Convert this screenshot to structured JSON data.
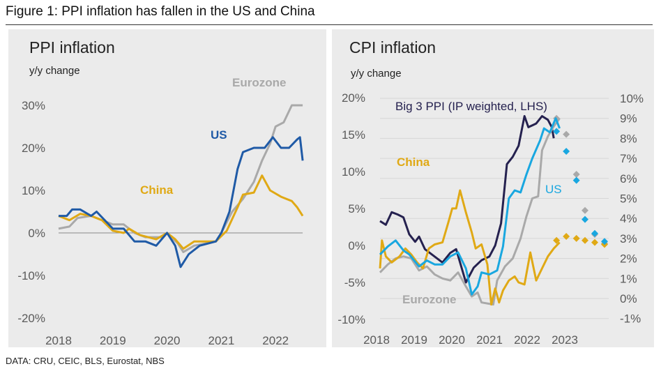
{
  "figure_title": "Figure 1: PPI inflation has fallen in the US and China",
  "footer": "DATA: CRU, CEIC, BLS, Eurostat, NBS",
  "colors": {
    "panel_bg": "#ebebeb",
    "us_ppi": "#1f5aa6",
    "china": "#e0a915",
    "eurozone": "#a9a9a9",
    "big3_ppi": "#25214f",
    "us_cpi": "#19a7e0"
  },
  "chart_data": [
    {
      "type": "line",
      "title": "PPI inflation",
      "ylabel": "y/y change",
      "ylim": [
        -20,
        30
      ],
      "xlim": [
        2018,
        2022.5
      ],
      "yticks": [
        "30%",
        "20%",
        "10%",
        "0%",
        "-10%",
        "-20%"
      ],
      "ytick_values": [
        30,
        20,
        10,
        0,
        -10,
        -20
      ],
      "xticks": [
        "2018",
        "2019",
        "2020",
        "2021",
        "2022"
      ],
      "grid": false,
      "zero_line": true,
      "series": [
        {
          "name": "Eurozone",
          "color": "#a9a9a9",
          "x": [
            2018,
            2018.2,
            2018.35,
            2018.6,
            2018.9,
            2019.0,
            2019.2,
            2019.4,
            2019.6,
            2019.9,
            2020.0,
            2020.2,
            2020.3,
            2020.5,
            2020.7,
            2020.9,
            2021.0,
            2021.2,
            2021.4,
            2021.6,
            2021.75,
            2021.9,
            2022.0,
            2022.15,
            2022.3,
            2022.5
          ],
          "y": [
            1,
            1.5,
            3.5,
            4,
            2.5,
            2,
            2,
            0,
            -1,
            -1,
            0,
            -2.5,
            -4.5,
            -3,
            -2.5,
            -2,
            0,
            5,
            8,
            12,
            17,
            21,
            25,
            26,
            30,
            30
          ]
        },
        {
          "name": "China",
          "color": "#e0a915",
          "x": [
            2018,
            2018.2,
            2018.4,
            2018.6,
            2018.8,
            2019.0,
            2019.2,
            2019.3,
            2019.5,
            2019.8,
            2020.0,
            2020.15,
            2020.3,
            2020.5,
            2020.7,
            2020.9,
            2021.1,
            2021.3,
            2021.4,
            2021.6,
            2021.75,
            2021.9,
            2022.1,
            2022.3,
            2022.4,
            2022.5
          ],
          "y": [
            4,
            3,
            4.5,
            4,
            3,
            0.5,
            0,
            1,
            -0.5,
            -1.5,
            0,
            -1.5,
            -3.7,
            -2,
            -2,
            -2,
            0.5,
            6,
            9,
            9.5,
            13.5,
            10,
            8.5,
            7.5,
            6,
            4
          ]
        },
        {
          "name": "US",
          "color": "#1f5aa6",
          "x": [
            2018,
            2018.15,
            2018.25,
            2018.4,
            2018.6,
            2018.7,
            2019.0,
            2019.2,
            2019.4,
            2019.6,
            2019.8,
            2020.0,
            2020.15,
            2020.25,
            2020.4,
            2020.6,
            2020.9,
            2021.0,
            2021.15,
            2021.3,
            2021.4,
            2021.6,
            2021.8,
            2021.95,
            2022.1,
            2022.25,
            2022.4,
            2022.45,
            2022.5
          ],
          "y": [
            4,
            4,
            5.5,
            5.5,
            4,
            5,
            1,
            1,
            -2,
            -2,
            -3,
            0,
            -3,
            -8,
            -5,
            -3,
            -2,
            0,
            5,
            15,
            19,
            20,
            20,
            22.5,
            20,
            20,
            22,
            22.5,
            17
          ]
        }
      ],
      "labels": [
        {
          "text": "Eurozone",
          "series": "Eurozone"
        },
        {
          "text": "US",
          "series": "US"
        },
        {
          "text": "China",
          "series": "China"
        }
      ]
    },
    {
      "type": "line",
      "title": "CPI inflation",
      "ylabel": "y/y change",
      "ylim_left": [
        -10,
        20
      ],
      "ylim_right": [
        -1,
        10
      ],
      "yticks_left": [
        "20%",
        "15%",
        "10%",
        "5%",
        "0%",
        "-5%",
        "-10%"
      ],
      "ytick_values_left": [
        20,
        15,
        10,
        5,
        0,
        -5,
        -10
      ],
      "yticks_right": [
        "10%",
        "9%",
        "8%",
        "7%",
        "6%",
        "5%",
        "4%",
        "3%",
        "2%",
        "1%",
        "0%",
        "-1%"
      ],
      "ytick_values_right": [
        10,
        9,
        8,
        7,
        6,
        5,
        4,
        3,
        2,
        1,
        0,
        -1
      ],
      "xticks": [
        "2018",
        "2019",
        "2020",
        "2021",
        "2022",
        "2023"
      ],
      "grid": true,
      "series": [
        {
          "name": "Big 3 PPI (IP weighted, LHS)",
          "axis": "left",
          "color": "#25214f",
          "x": [
            2018,
            2018.15,
            2018.3,
            2018.45,
            2018.6,
            2018.75,
            2018.9,
            2019.0,
            2019.15,
            2019.4,
            2019.6,
            2019.8,
            2019.95,
            2020.2,
            2020.4,
            2020.6,
            2020.8,
            2020.95,
            2021.1,
            2021.25,
            2021.4,
            2021.55,
            2021.7,
            2021.8,
            2022.0,
            2022.15,
            2022.3,
            2022.4,
            2022.45
          ],
          "y": [
            3.3,
            2.8,
            4.5,
            4.2,
            3.8,
            1.5,
            0.5,
            1.2,
            -0.5,
            -1.5,
            -2.3,
            -1,
            -0.5,
            -5,
            -3,
            -2,
            -1.5,
            0,
            3,
            11,
            12,
            13.5,
            17.5,
            16,
            16.5,
            17.5,
            17,
            16,
            14.5
          ]
        },
        {
          "name": "Eurozone",
          "axis": "right",
          "color": "#a9a9a9",
          "x": [
            2018,
            2018.2,
            2018.4,
            2018.6,
            2018.8,
            2019.0,
            2019.2,
            2019.4,
            2019.6,
            2019.8,
            2020.0,
            2020.2,
            2020.35,
            2020.5,
            2020.6,
            2020.9,
            2021.0,
            2021.2,
            2021.4,
            2021.6,
            2021.75,
            2021.9,
            2022.05,
            2022.15,
            2022.3,
            2022.45,
            2022.6
          ],
          "y": [
            1.3,
            1.7,
            2.0,
            2.1,
            2.0,
            1.4,
            1.6,
            1.2,
            1.0,
            0.9,
            1.3,
            0.6,
            0.1,
            0.3,
            -0.2,
            -0.3,
            0.9,
            1.6,
            2.0,
            3.0,
            4.1,
            5.0,
            5.1,
            7.4,
            8.1,
            8.6,
            9.0
          ],
          "forecast_x": [
            2022.52,
            2022.77,
            2023.03,
            2023.25,
            2023.5,
            2023.75
          ],
          "forecast_y": [
            9.0,
            8.2,
            6.2,
            4.4,
            3.2,
            2.75
          ]
        },
        {
          "name": "China",
          "axis": "right",
          "color": "#e0a915",
          "x": [
            2018,
            2018.05,
            2018.15,
            2018.3,
            2018.5,
            2018.65,
            2018.8,
            2018.95,
            2019.1,
            2019.25,
            2019.4,
            2019.6,
            2019.75,
            2019.85,
            2019.95,
            2020.05,
            2020.2,
            2020.35,
            2020.45,
            2020.6,
            2020.75,
            2020.85,
            2020.95,
            2021.05,
            2021.15,
            2021.3,
            2021.45,
            2021.55,
            2021.7,
            2021.85,
            2022.0,
            2022.15,
            2022.3,
            2022.45,
            2022.6
          ],
          "y": [
            1.5,
            2.9,
            2.1,
            1.8,
            2.1,
            2.5,
            2.2,
            1.8,
            1.5,
            2.5,
            2.7,
            2.8,
            3.8,
            4.5,
            4.5,
            5.4,
            4.3,
            3.3,
            2.5,
            2.7,
            1.7,
            -0.3,
            0.5,
            -0.2,
            0.4,
            0.9,
            1.1,
            0.8,
            0.7,
            2.3,
            0.9,
            1.5,
            2.1,
            2.5,
            2.8
          ],
          "forecast_x": [
            2022.52,
            2022.77,
            2023.03,
            2023.25,
            2023.5,
            2023.75
          ],
          "forecast_y": [
            2.9,
            3.1,
            3.0,
            2.9,
            2.8,
            2.7
          ]
        },
        {
          "name": "US",
          "axis": "right",
          "color": "#19a7e0",
          "x": [
            2018,
            2018.2,
            2018.4,
            2018.6,
            2018.75,
            2019.0,
            2019.2,
            2019.4,
            2019.6,
            2019.8,
            2020.0,
            2020.2,
            2020.35,
            2020.5,
            2020.6,
            2020.8,
            2021.0,
            2021.15,
            2021.3,
            2021.45,
            2021.6,
            2021.75,
            2021.9,
            2022.1,
            2022.2,
            2022.35,
            2022.5,
            2022.6
          ],
          "y": [
            2.2,
            2.6,
            2.9,
            2.4,
            2.2,
            1.6,
            1.9,
            1.7,
            1.7,
            2.1,
            2.3,
            1.5,
            0.2,
            0.6,
            1.3,
            1.2,
            1.4,
            2.6,
            5.0,
            5.4,
            5.3,
            6.2,
            7.0,
            7.9,
            8.5,
            8.3,
            9.0,
            8.5
          ],
          "forecast_x": [
            2022.52,
            2022.77,
            2023.03,
            2023.25,
            2023.5,
            2023.75
          ],
          "forecast_y": [
            8.35,
            7.35,
            5.9,
            3.95,
            3.25,
            2.85
          ]
        }
      ],
      "labels": [
        {
          "text": "Big 3 PPI (IP weighted, LHS)",
          "series": "Big 3 PPI (IP weighted, LHS)"
        },
        {
          "text": "China",
          "series": "China"
        },
        {
          "text": "US",
          "series": "US"
        },
        {
          "text": "Eurozone",
          "series": "Eurozone"
        }
      ]
    }
  ]
}
